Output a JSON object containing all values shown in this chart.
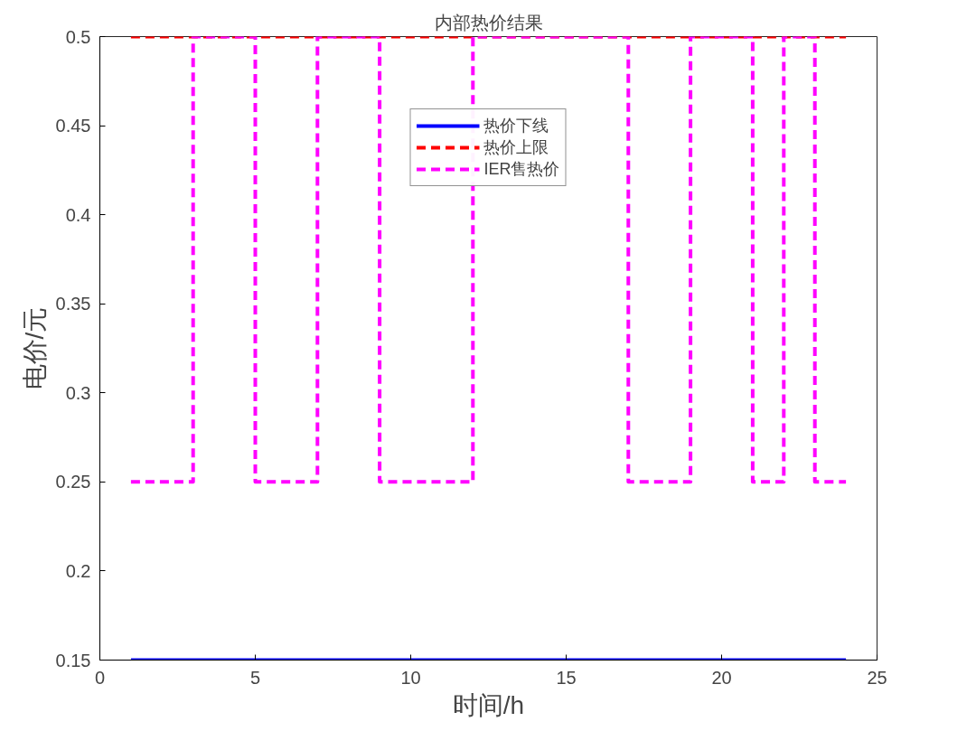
{
  "chart_data": {
    "type": "line",
    "title": "内部热价结果",
    "xlabel": "时间/h",
    "ylabel": "电价/元",
    "x": [
      1,
      2,
      3,
      4,
      5,
      6,
      7,
      8,
      9,
      10,
      11,
      12,
      13,
      14,
      15,
      16,
      17,
      18,
      19,
      20,
      21,
      22,
      23,
      24
    ],
    "series": [
      {
        "name": "热价下线",
        "color": "#0000ff",
        "type": "line",
        "line_style": "solid",
        "values": [
          0.15,
          0.15,
          0.15,
          0.15,
          0.15,
          0.15,
          0.15,
          0.15,
          0.15,
          0.15,
          0.15,
          0.15,
          0.15,
          0.15,
          0.15,
          0.15,
          0.15,
          0.15,
          0.15,
          0.15,
          0.15,
          0.15,
          0.15,
          0.15
        ]
      },
      {
        "name": "热价上限",
        "color": "#ff0000",
        "type": "line",
        "line_style": "dashed",
        "values": [
          0.5,
          0.5,
          0.5,
          0.5,
          0.5,
          0.5,
          0.5,
          0.5,
          0.5,
          0.5,
          0.5,
          0.5,
          0.5,
          0.5,
          0.5,
          0.5,
          0.5,
          0.5,
          0.5,
          0.5,
          0.5,
          0.5,
          0.5,
          0.5
        ]
      },
      {
        "name": "IER售热价",
        "color": "#ff00ff",
        "type": "step",
        "line_style": "dashed",
        "values": [
          0.25,
          0.25,
          0.5,
          0.5,
          0.25,
          0.25,
          0.5,
          0.5,
          0.25,
          0.25,
          0.25,
          0.5,
          0.5,
          0.5,
          0.5,
          0.5,
          0.25,
          0.25,
          0.5,
          0.5,
          0.25,
          0.5,
          0.25,
          0.25
        ]
      }
    ],
    "xlim": [
      0,
      25
    ],
    "xticks": [
      0,
      5,
      10,
      15,
      20,
      25
    ],
    "ylim": [
      0.15,
      0.5
    ],
    "yticks": [
      0.15,
      0.2,
      0.25,
      0.3,
      0.35,
      0.4,
      0.45,
      0.5
    ],
    "grid": false,
    "legend": "top"
  }
}
